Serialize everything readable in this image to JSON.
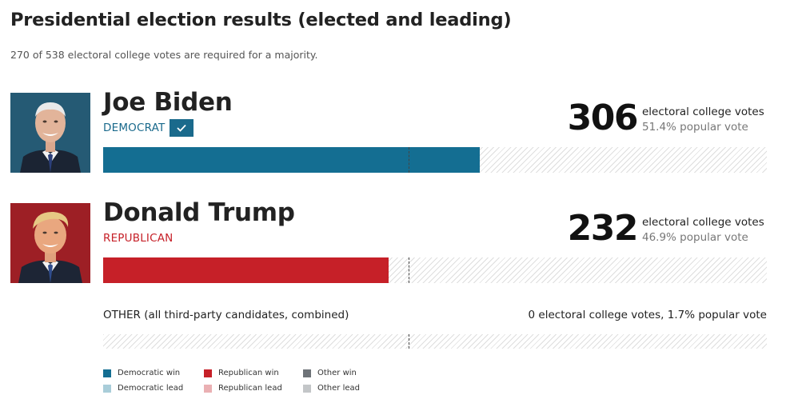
{
  "title": "Presidential election results (elected and leading)",
  "subtitle": "270 of 538 electoral college votes are required for a majority.",
  "chart_data": {
    "type": "bar",
    "orientation": "horizontal",
    "total_electoral_votes": 538,
    "majority_threshold": 270,
    "candidates": [
      {
        "key": "biden",
        "name": "Joe Biden",
        "party": "DEMOCRAT",
        "electoral_votes": 306,
        "popular_vote": "51.4% popular vote",
        "winner": true,
        "color": "#146e92"
      },
      {
        "key": "trump",
        "name": "Donald Trump",
        "party": "REPUBLICAN",
        "electoral_votes": 232,
        "popular_vote": "46.9% popular vote",
        "winner": false,
        "color": "#c62028"
      }
    ],
    "ev_label": "electoral college votes",
    "other": {
      "label": "OTHER (all third-party candidates, combined)",
      "value_text": "0 electoral college votes, 1.7% popular vote",
      "electoral_votes": 0,
      "popular_vote_pct": 1.7
    },
    "legend": [
      {
        "label": "Democratic win",
        "color": "#146e92"
      },
      {
        "label": "Democratic lead",
        "color": "#a9cdd9"
      },
      {
        "label": "Republican win",
        "color": "#c62028"
      },
      {
        "label": "Republican lead",
        "color": "#eab0b3"
      },
      {
        "label": "Other win",
        "color": "#6e7378"
      },
      {
        "label": "Other lead",
        "color": "#c3c6c8"
      }
    ]
  }
}
